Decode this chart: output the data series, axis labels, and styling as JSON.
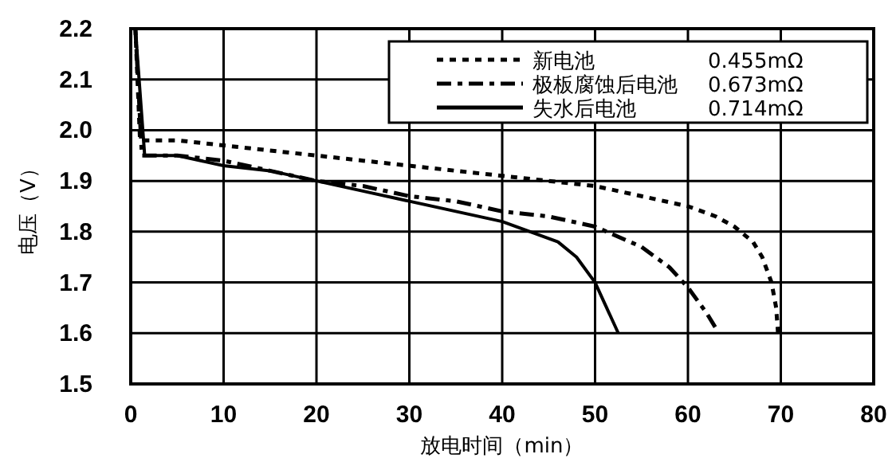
{
  "chart_data": {
    "type": "line",
    "xlabel": "放电时间（min）",
    "ylabel": "电压（V）",
    "xlim": [
      0,
      80
    ],
    "ylim": [
      1.5,
      2.2
    ],
    "xticks": [
      0,
      10,
      20,
      30,
      40,
      50,
      60,
      70,
      80
    ],
    "yticks": [
      {
        "value": 1.5,
        "label": "1.5"
      },
      {
        "value": 1.6,
        "label": "1.6"
      },
      {
        "value": 1.7,
        "label": "1.7"
      },
      {
        "value": 1.8,
        "label": "1.8"
      },
      {
        "value": 1.9,
        "label": "1.9"
      },
      {
        "value": 2.0,
        "label": "2.0"
      },
      {
        "value": 2.1,
        "label": "2.1"
      },
      {
        "value": 2.2,
        "label": "2.2"
      }
    ],
    "grid": true,
    "legend": "top right",
    "annotations": [
      "0.455mΩ",
      "0.673mΩ",
      "0.714mΩ"
    ],
    "series": [
      {
        "name": "新电池",
        "color": "#000000",
        "line_style": "dotted",
        "x": [
          0.5,
          1,
          5,
          10,
          15,
          20,
          25,
          30,
          35,
          40,
          45,
          50,
          55,
          60,
          63,
          65,
          67,
          68,
          69,
          69.5,
          69.7
        ],
        "values": [
          2.2,
          1.98,
          1.98,
          1.97,
          1.96,
          1.95,
          1.94,
          1.93,
          1.92,
          1.91,
          1.9,
          1.89,
          1.87,
          1.85,
          1.83,
          1.81,
          1.78,
          1.75,
          1.7,
          1.65,
          1.6
        ]
      },
      {
        "name": "极板腐蚀后电池",
        "color": "#000000",
        "line_style": "dashed",
        "x": [
          0.5,
          1.2,
          5,
          10,
          15,
          20,
          25,
          30,
          35,
          40,
          45,
          50,
          55,
          58,
          60,
          62,
          63
        ],
        "values": [
          2.2,
          1.95,
          1.95,
          1.94,
          1.92,
          1.9,
          1.89,
          1.87,
          1.86,
          1.84,
          1.83,
          1.81,
          1.77,
          1.73,
          1.69,
          1.64,
          1.61
        ]
      },
      {
        "name": "失水后电池",
        "color": "#000000",
        "line_style": "solid",
        "x": [
          0.5,
          1.5,
          5,
          10,
          15,
          20,
          25,
          30,
          35,
          40,
          43,
          46,
          48,
          50,
          51,
          52,
          52.5
        ],
        "values": [
          2.2,
          1.95,
          1.95,
          1.93,
          1.92,
          1.9,
          1.88,
          1.86,
          1.84,
          1.82,
          1.8,
          1.78,
          1.75,
          1.7,
          1.66,
          1.62,
          1.6
        ]
      }
    ]
  }
}
